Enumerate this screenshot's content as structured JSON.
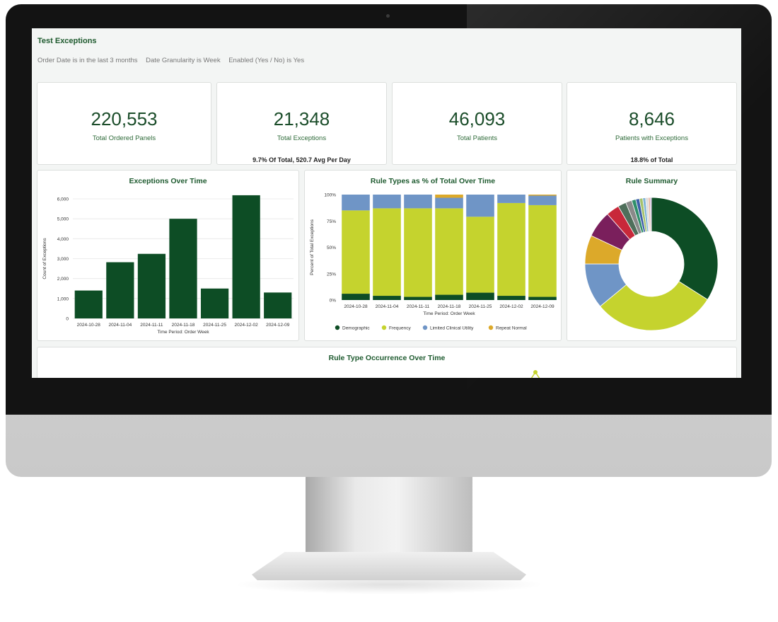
{
  "dashboard": {
    "title": "Test Exceptions",
    "filters": [
      "Order Date is in the last 3 months",
      "Date Granularity is Week",
      "Enabled (Yes / No) is Yes"
    ]
  },
  "kpis": [
    {
      "value": "220,553",
      "label": "Total Ordered Panels",
      "sub": ""
    },
    {
      "value": "21,348",
      "label": "Total Exceptions",
      "sub": "9.7% Of Total, 520.7 Avg Per Day"
    },
    {
      "value": "46,093",
      "label": "Total Patients",
      "sub": ""
    },
    {
      "value": "8,646",
      "label": "Patients with Exceptions",
      "sub": "18.8% of Total"
    }
  ],
  "colors": {
    "demographic": "#0d4d25",
    "frequency": "#c5d32e",
    "limited": "#6f95c6",
    "repeat": "#dca92a"
  },
  "chart_data": [
    {
      "type": "bar",
      "title": "Exceptions Over Time",
      "xlabel": "Time Period: Order Week",
      "ylabel": "Count of Exceptions",
      "categories": [
        "2024-10-28",
        "2024-11-04",
        "2024-11-11",
        "2024-11-18",
        "2024-11-25",
        "2024-12-02",
        "2024-12-09"
      ],
      "values": [
        1400,
        2820,
        3240,
        5000,
        1500,
        6180,
        1300
      ],
      "ylim": [
        0,
        6000
      ],
      "yticks": [
        "0",
        "1,000",
        "2,000",
        "3,000",
        "4,000",
        "5,000",
        "6,000"
      ],
      "color": "#0d4d25"
    },
    {
      "type": "bar",
      "stacked": true,
      "title": "Rule Types as % of Total Over Time",
      "xlabel": "Time Period: Order Week",
      "ylabel": "Percent of Total Exceptions",
      "categories": [
        "2024-10-28",
        "2024-11-04",
        "2024-11-11",
        "2024-11-18",
        "2024-11-25",
        "2024-12-02",
        "2024-12-09"
      ],
      "yticks": [
        "0%",
        "25%",
        "50%",
        "75%",
        "100%"
      ],
      "series": [
        {
          "name": "Demographic",
          "values": [
            6,
            4,
            3,
            5,
            7,
            4,
            3
          ],
          "color": "#0d4d25"
        },
        {
          "name": "Frequency",
          "values": [
            79,
            83,
            84,
            82,
            72,
            88,
            87
          ],
          "color": "#c5d32e"
        },
        {
          "name": "Limited Clinical Utility",
          "values": [
            15,
            13,
            13,
            10,
            21,
            8,
            9
          ],
          "color": "#6f95c6"
        },
        {
          "name": "Repeat Normal",
          "values": [
            0,
            0,
            0,
            3,
            0,
            0,
            1
          ],
          "color": "#dca92a"
        }
      ],
      "legend": "bottom"
    },
    {
      "type": "pie",
      "donut": true,
      "title": "Rule Summary",
      "slices": [
        {
          "value": 34,
          "color": "#0d4d25"
        },
        {
          "value": 30,
          "color": "#c5d32e"
        },
        {
          "value": 11,
          "color": "#6f95c6"
        },
        {
          "value": 7,
          "color": "#dca92a"
        },
        {
          "value": 6.5,
          "color": "#7a1f5c"
        },
        {
          "value": 3.2,
          "color": "#c8283a"
        },
        {
          "value": 2.0,
          "color": "#4f6f5b"
        },
        {
          "value": 1.5,
          "color": "#8a8a8a"
        },
        {
          "value": 1.0,
          "color": "#2f8f6a"
        },
        {
          "value": 0.9,
          "color": "#3d5fa8"
        },
        {
          "value": 0.8,
          "color": "#a5c26a"
        },
        {
          "value": 0.7,
          "color": "#7fb3d5"
        },
        {
          "value": 0.6,
          "color": "#d9d9d9"
        },
        {
          "value": 0.5,
          "color": "#e6b9a8"
        },
        {
          "value": 0.3,
          "color": "#b08acb"
        }
      ]
    }
  ],
  "bottom_panel": {
    "title": "Rule Type Occurrence Over Time"
  }
}
